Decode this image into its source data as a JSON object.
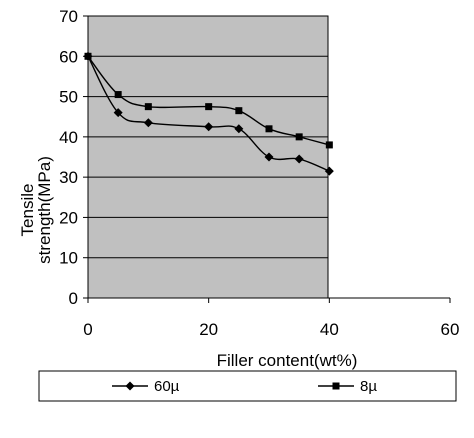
{
  "chart_data": {
    "type": "line",
    "title": "",
    "xlabel": "Filler content(wt%)",
    "ylabel_lines": [
      "Tensile",
      "strength(MPa)"
    ],
    "xlim": [
      0,
      60
    ],
    "ylim": [
      0,
      70
    ],
    "x_ticks": [
      0,
      20,
      40,
      60
    ],
    "y_ticks": [
      0,
      10,
      20,
      30,
      40,
      50,
      60,
      70
    ],
    "grid": "horizontal",
    "plot_background": "#c0c0c0",
    "legend_position": "bottom",
    "series": [
      {
        "name": "60µ",
        "marker": "diamond",
        "color": "#000000",
        "x": [
          0,
          5,
          10,
          20,
          25,
          30,
          35,
          40
        ],
        "y": [
          60,
          46,
          43.5,
          42.5,
          42,
          35,
          34.5,
          31.5
        ]
      },
      {
        "name": "8µ",
        "marker": "square",
        "color": "#000000",
        "x": [
          0,
          5,
          10,
          20,
          25,
          30,
          35,
          40
        ],
        "y": [
          60,
          50.5,
          47.5,
          47.5,
          46.5,
          42,
          40,
          38
        ]
      }
    ]
  }
}
